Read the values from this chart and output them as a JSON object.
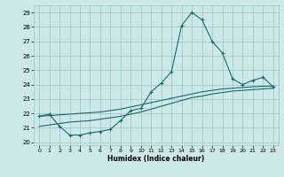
{
  "xlabel": "Humidex (Indice chaleur)",
  "xlim": [
    -0.5,
    23.5
  ],
  "ylim": [
    19.8,
    29.5
  ],
  "xticks": [
    0,
    1,
    2,
    3,
    4,
    5,
    6,
    7,
    8,
    9,
    10,
    11,
    12,
    13,
    14,
    15,
    16,
    17,
    18,
    19,
    20,
    21,
    22,
    23
  ],
  "yticks": [
    20,
    21,
    22,
    23,
    24,
    25,
    26,
    27,
    28,
    29
  ],
  "bg_color": "#cce8e8",
  "grid_color": "#99c4c4",
  "line_color": "#1a6b6b",
  "curve1_x": [
    0,
    1,
    2,
    3,
    4,
    5,
    6,
    7,
    8,
    9,
    10,
    11,
    12,
    13,
    14,
    15,
    16,
    17,
    18,
    19,
    20,
    21,
    22,
    23
  ],
  "curve1_y": [
    21.8,
    21.95,
    21.1,
    20.5,
    20.5,
    20.65,
    20.75,
    20.9,
    21.5,
    22.2,
    22.35,
    23.5,
    24.1,
    24.9,
    28.1,
    29.0,
    28.5,
    27.0,
    26.2,
    24.4,
    24.0,
    24.3,
    24.5,
    23.85
  ],
  "curve2_x": [
    0,
    1,
    2,
    3,
    4,
    5,
    6,
    7,
    8,
    9,
    10,
    11,
    12,
    13,
    14,
    15,
    16,
    17,
    18,
    19,
    20,
    21,
    22,
    23
  ],
  "curve2_y": [
    21.8,
    21.85,
    21.9,
    21.95,
    22.0,
    22.05,
    22.1,
    22.2,
    22.3,
    22.45,
    22.6,
    22.75,
    22.9,
    23.05,
    23.2,
    23.35,
    23.5,
    23.6,
    23.7,
    23.75,
    23.8,
    23.85,
    23.88,
    23.9
  ],
  "curve3_x": [
    0,
    1,
    2,
    3,
    4,
    5,
    6,
    7,
    8,
    9,
    10,
    11,
    12,
    13,
    14,
    15,
    16,
    17,
    18,
    19,
    20,
    21,
    22,
    23
  ],
  "curve3_y": [
    21.1,
    21.2,
    21.3,
    21.4,
    21.45,
    21.5,
    21.6,
    21.7,
    21.8,
    21.95,
    22.1,
    22.3,
    22.5,
    22.7,
    22.9,
    23.1,
    23.2,
    23.35,
    23.45,
    23.55,
    23.6,
    23.65,
    23.7,
    23.75
  ]
}
